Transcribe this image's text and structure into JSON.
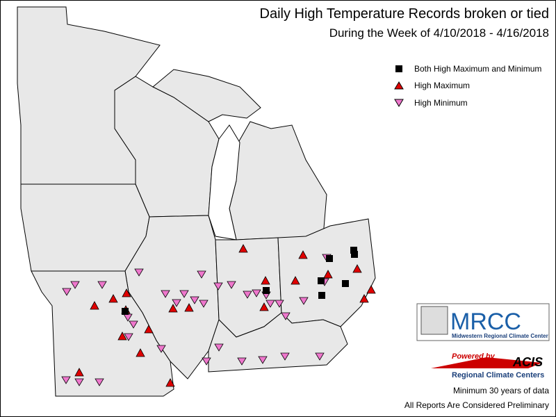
{
  "title": "Daily High Temperature Records broken or tied",
  "subtitle": "During the Week of 4/10/2018 - 4/16/2018",
  "legend": [
    "Both High Maximum and Minimum",
    "High Maximum",
    "High Minimum"
  ],
  "logo": {
    "name": "MRCC",
    "caption": "Midwestern Regional Climate Center"
  },
  "acis": {
    "powered_by": "Powered by",
    "name": "ACIS",
    "caption": "Regional Climate Centers"
  },
  "notes": [
    "Minimum 30 years of data",
    "All Reports Are Considered Preliminary"
  ]
}
